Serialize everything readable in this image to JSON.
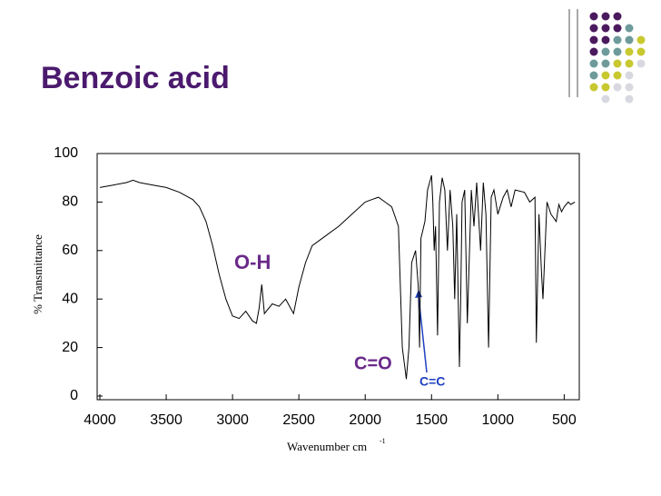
{
  "chart_data": {
    "type": "line",
    "title": "Benzoic acid",
    "y_label": "% Transmittance",
    "x_label": "Wavenumber cm",
    "x_label_superscript": "-1",
    "annotations": [
      "O-H",
      "C=O",
      "C=C"
    ],
    "xlim": [
      4000,
      400
    ],
    "ylim": [
      0,
      100
    ],
    "xticks": [
      4000,
      3500,
      3000,
      2500,
      2000,
      1500,
      1000,
      500
    ],
    "yticks": [
      0,
      20,
      40,
      60,
      80,
      100
    ],
    "x": [
      4000,
      3900,
      3800,
      3750,
      3700,
      3600,
      3500,
      3400,
      3300,
      3250,
      3200,
      3150,
      3100,
      3050,
      3000,
      2950,
      2900,
      2850,
      2820,
      2800,
      2780,
      2760,
      2700,
      2650,
      2600,
      2560,
      2540,
      2500,
      2450,
      2400,
      2300,
      2200,
      2100,
      2000,
      1950,
      1900,
      1850,
      1800,
      1750,
      1720,
      1690,
      1670,
      1650,
      1620,
      1600,
      1590,
      1580,
      1550,
      1530,
      1500,
      1490,
      1480,
      1470,
      1455,
      1440,
      1420,
      1400,
      1380,
      1360,
      1340,
      1325,
      1310,
      1290,
      1280,
      1270,
      1250,
      1230,
      1200,
      1180,
      1160,
      1130,
      1110,
      1090,
      1070,
      1050,
      1030,
      1000,
      960,
      930,
      900,
      870,
      800,
      760,
      720,
      710,
      690,
      670,
      660,
      630,
      600,
      560,
      540,
      520,
      500,
      470,
      450,
      420
    ],
    "series": [
      {
        "color": "#000000",
        "values": [
          86,
          87,
          88,
          89,
          88,
          87,
          86,
          84,
          81,
          78,
          72,
          62,
          50,
          40,
          33,
          32,
          35,
          31,
          30,
          36,
          46,
          34,
          38,
          37,
          40,
          36,
          34,
          45,
          55,
          62,
          66,
          70,
          75,
          80,
          81,
          82,
          80,
          78,
          70,
          20,
          7,
          20,
          55,
          60,
          45,
          20,
          65,
          72,
          85,
          91,
          80,
          60,
          70,
          25,
          80,
          90,
          85,
          60,
          85,
          70,
          40,
          75,
          12,
          40,
          80,
          85,
          30,
          85,
          70,
          88,
          60,
          88,
          75,
          20,
          82,
          85,
          75,
          82,
          85,
          78,
          85,
          84,
          80,
          82,
          22,
          75,
          50,
          40,
          80,
          75,
          72,
          79,
          76,
          78,
          80,
          79,
          80
        ]
      }
    ]
  }
}
